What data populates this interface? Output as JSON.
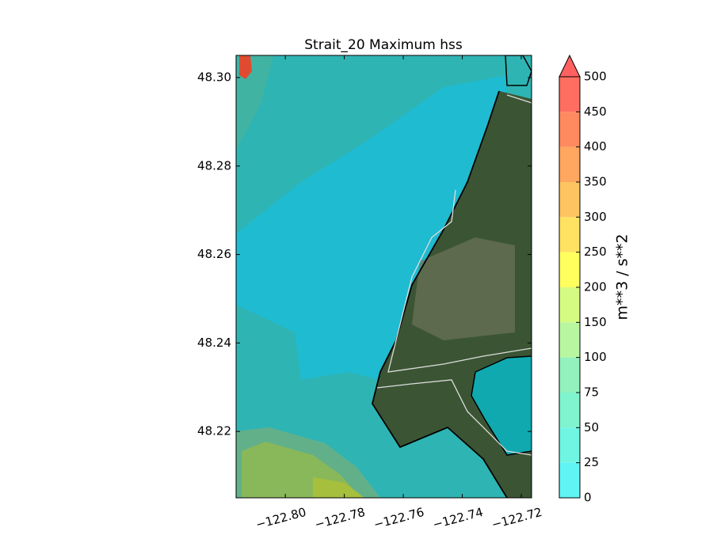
{
  "chart_data": {
    "type": "map",
    "title": "Strait_20 Maximum hss",
    "xlim": [
      -122.8167,
      -122.7165
    ],
    "ylim": [
      48.205,
      48.305
    ],
    "xticks": [
      {
        "value": -122.8,
        "label": "−122.80"
      },
      {
        "value": -122.78,
        "label": "−122.78"
      },
      {
        "value": -122.76,
        "label": "−122.76"
      },
      {
        "value": -122.74,
        "label": "−122.74"
      },
      {
        "value": -122.72,
        "label": "−122.72"
      }
    ],
    "yticks": [
      {
        "value": 48.3,
        "label": "48.30"
      },
      48.28,
      48.26,
      48.24,
      48.22
    ],
    "colorbar": {
      "label": "m**3 / s**2",
      "ticks": [
        0,
        25,
        50,
        75,
        100,
        150,
        200,
        250,
        300,
        350,
        400,
        450,
        500
      ],
      "colors": [
        "#5ff5f5",
        "#6ff5e2",
        "#80f3cf",
        "#92f1bd",
        "#b8f7a0",
        "#d6fb82",
        "#ffff5e",
        "#ffe262",
        "#ffc462",
        "#ffa660",
        "#ff8a60",
        "#ff6e60"
      ],
      "extend_color": "#ff6060"
    }
  }
}
